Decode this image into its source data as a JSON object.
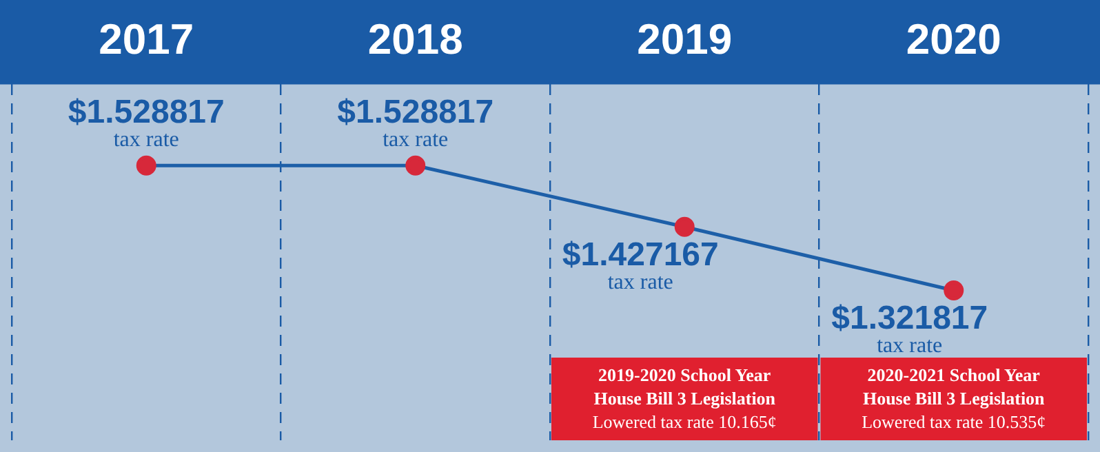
{
  "chart_data": {
    "type": "line",
    "categories": [
      "2017",
      "2018",
      "2019",
      "2020"
    ],
    "series": [
      {
        "color": "#1d5fa8",
        "colors": [
          "#d7283a",
          "#d7283a",
          "#d7283a",
          "#d7283a"
        ],
        "values": [
          1.528817,
          1.528817,
          1.427167,
          1.321817
        ],
        "value_labels": [
          "$1.528817",
          "$1.528817",
          "$1.427167",
          "$1.321817"
        ]
      }
    ],
    "annotations": [
      "tax rate",
      "tax rate",
      "tax rate",
      "tax rate",
      "2019-2020 School Year\nHouse Bill 3 Legislation\nLowered tax rate 10.165¢",
      "2020-2021 School Year\nHouse Bill 3 Legislation\nLowered tax rate 10.535¢"
    ],
    "marker": "circle",
    "grid": "x",
    "legend": false
  }
}
